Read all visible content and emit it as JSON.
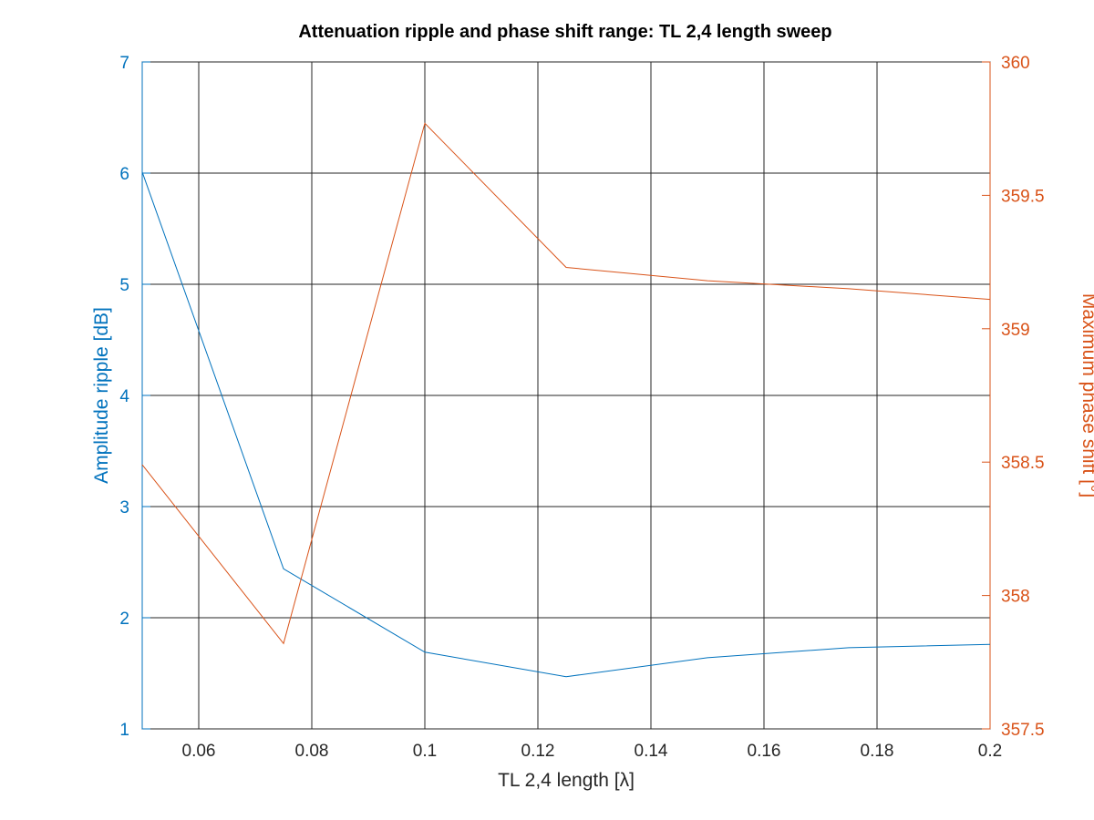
{
  "chart_data": {
    "type": "line",
    "title": "Attenuation ripple and phase shift range: TL 2,4 length sweep",
    "xlabel": "TL 2,4 length [λ]",
    "ylabel_left": "Amplitude ripple [dB]",
    "ylabel_right": "Maximum phase shift [°]",
    "xlim": [
      0.05,
      0.2
    ],
    "ylim_left": [
      1,
      7
    ],
    "ylim_right": [
      357.5,
      360
    ],
    "x_ticks": [
      "0.06",
      "0.08",
      "0.1",
      "0.12",
      "0.14",
      "0.16",
      "0.18",
      "0.2"
    ],
    "y_ticks_left": [
      "1",
      "2",
      "3",
      "4",
      "5",
      "6",
      "7"
    ],
    "y_ticks_right": [
      "357.5",
      "358",
      "358.5",
      "359",
      "359.5",
      "360"
    ],
    "grid": true,
    "x": [
      0.05,
      0.075,
      0.1,
      0.125,
      0.15,
      0.175,
      0.2
    ],
    "series": [
      {
        "axis": "left",
        "color": "#0072bd",
        "values": [
          6.01,
          2.44,
          1.69,
          1.47,
          1.64,
          1.73,
          1.76
        ]
      },
      {
        "axis": "right",
        "color": "#d95319",
        "values": [
          358.49,
          357.82,
          359.77,
          359.23,
          359.18,
          359.15,
          359.11
        ]
      }
    ]
  }
}
